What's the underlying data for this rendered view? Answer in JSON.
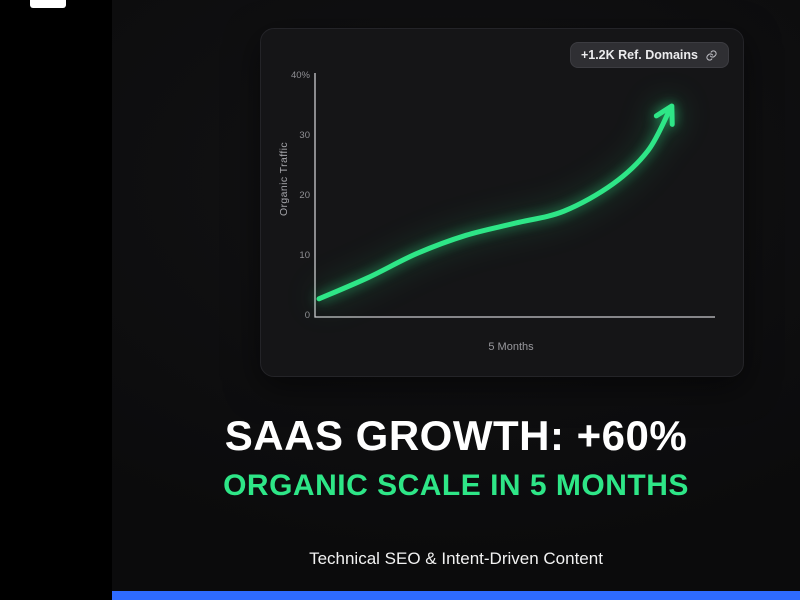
{
  "badge": {
    "label": "+1.2K Ref. Domains",
    "icon": "link-icon"
  },
  "headline": {
    "title": "SAAS GROWTH: +60%",
    "subtitle": "ORGANIC SCALE IN 5 MONTHS",
    "footer": "Technical SEO & Intent-Driven Content"
  },
  "colors": {
    "accent_green": "#2ee687",
    "bottom_bar_blue": "#2e6bff",
    "background": "#000000",
    "card_background": "#151517"
  },
  "chart_data": {
    "type": "line",
    "title": "",
    "xlabel": "5 Months",
    "ylabel": "Organic Traffic",
    "y_tick_labels": [
      "40%",
      "30",
      "20",
      "10",
      "0"
    ],
    "xlim": [
      0,
      5
    ],
    "ylim": [
      0,
      40
    ],
    "grid": false,
    "legend": false,
    "series": [
      {
        "name": "Organic Traffic",
        "color": "#2ee687",
        "end_marker": "arrowhead",
        "points": [
          [
            0,
            3
          ],
          [
            0.7,
            6.5
          ],
          [
            1.4,
            10.5
          ],
          [
            2.1,
            13.5
          ],
          [
            2.8,
            15.5
          ],
          [
            3.5,
            17.5
          ],
          [
            4.2,
            22
          ],
          [
            4.7,
            27.5
          ],
          [
            5,
            34
          ]
        ]
      }
    ]
  }
}
